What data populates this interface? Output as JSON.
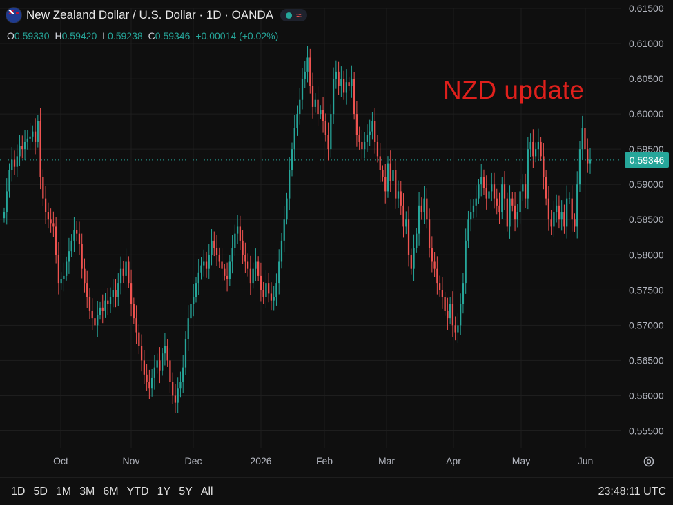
{
  "header": {
    "title": "New Zealand Dollar / U.S. Dollar · 1D · OANDA",
    "flag_icon": "nz-us-flag-icon",
    "status_icons": [
      "market-open-dot-icon",
      "wave-icon"
    ],
    "wave_glyph": "≈"
  },
  "ohlc": {
    "o_label": "O",
    "o_value": "0.59330",
    "h_label": "H",
    "h_value": "0.59420",
    "l_label": "L",
    "l_value": "0.59238",
    "c_label": "C",
    "c_value": "0.59346",
    "change": "+0.00014 (+0.02%)"
  },
  "annotation": "NZD update",
  "price_tag": "0.59346",
  "range_buttons": [
    "1D",
    "5D",
    "1M",
    "3M",
    "6M",
    "YTD",
    "1Y",
    "5Y",
    "All"
  ],
  "clock": "23:48:11 UTC",
  "colors": {
    "up": "#26a69a",
    "down": "#ef5350",
    "background": "#0f0f0f",
    "grid": "#1e1e1e",
    "annotation": "#e0201c"
  },
  "chart_data": {
    "type": "candlestick",
    "y_axis_position": "right",
    "ylim": [
      0.5525,
      0.615
    ],
    "y_ticks": [
      "0.61500",
      "0.61000",
      "0.60500",
      "0.60000",
      "0.59500",
      "0.59000",
      "0.58500",
      "0.58000",
      "0.57500",
      "0.57000",
      "0.56500",
      "0.56000",
      "0.55500"
    ],
    "x_ticks": [
      "Oct",
      "Nov",
      "Dec",
      "2026",
      "Feb",
      "Mar",
      "Apr",
      "May",
      "Jun"
    ],
    "last_close": 0.59346,
    "grid": true,
    "closes": [
      0.586,
      0.589,
      0.592,
      0.5935,
      0.5925,
      0.594,
      0.5955,
      0.595,
      0.596,
      0.5965,
      0.5968,
      0.5975,
      0.596,
      0.599,
      0.591,
      0.588,
      0.586,
      0.585,
      0.5845,
      0.584,
      0.58,
      0.576,
      0.5765,
      0.577,
      0.579,
      0.5805,
      0.582,
      0.5835,
      0.583,
      0.5815,
      0.578,
      0.576,
      0.574,
      0.572,
      0.571,
      0.57,
      0.5715,
      0.5725,
      0.572,
      0.5735,
      0.573,
      0.574,
      0.575,
      0.574,
      0.576,
      0.578,
      0.577,
      0.579,
      0.576,
      0.573,
      0.571,
      0.569,
      0.567,
      0.565,
      0.563,
      0.562,
      0.561,
      0.5625,
      0.564,
      0.565,
      0.5635,
      0.566,
      0.567,
      0.565,
      0.562,
      0.56,
      0.559,
      0.561,
      0.562,
      0.564,
      0.568,
      0.571,
      0.573,
      0.574,
      0.576,
      0.5775,
      0.5785,
      0.579,
      0.578,
      0.58,
      0.582,
      0.581,
      0.58,
      0.579,
      0.578,
      0.577,
      0.5765,
      0.579,
      0.581,
      0.583,
      0.584,
      0.582,
      0.58,
      0.579,
      0.578,
      0.576,
      0.578,
      0.579,
      0.577,
      0.575,
      0.574,
      0.576,
      0.5745,
      0.5735,
      0.574,
      0.576,
      0.579,
      0.582,
      0.585,
      0.588,
      0.592,
      0.595,
      0.598,
      0.6,
      0.602,
      0.605,
      0.606,
      0.608,
      0.604,
      0.601,
      0.602,
      0.6,
      0.6005,
      0.599,
      0.597,
      0.595,
      0.6,
      0.605,
      0.606,
      0.604,
      0.605,
      0.603,
      0.6045,
      0.604,
      0.605,
      0.6,
      0.597,
      0.596,
      0.595,
      0.596,
      0.597,
      0.5975,
      0.599,
      0.596,
      0.594,
      0.592,
      0.591,
      0.589,
      0.593,
      0.5905,
      0.592,
      0.588,
      0.589,
      0.587,
      0.584,
      0.585,
      0.58,
      0.578,
      0.581,
      0.583,
      0.587,
      0.586,
      0.588,
      0.585,
      0.581,
      0.579,
      0.578,
      0.576,
      0.575,
      0.574,
      0.572,
      0.571,
      0.573,
      0.57,
      0.569,
      0.57,
      0.573,
      0.576,
      0.582,
      0.585,
      0.586,
      0.587,
      0.588,
      0.59,
      0.591,
      0.5895,
      0.588,
      0.589,
      0.59,
      0.588,
      0.587,
      0.586,
      0.59,
      0.588,
      0.584,
      0.588,
      0.587,
      0.585,
      0.586,
      0.589,
      0.59,
      0.588,
      0.595,
      0.596,
      0.594,
      0.595,
      0.596,
      0.594,
      0.591,
      0.588,
      0.585,
      0.584,
      0.586,
      0.587,
      0.585,
      0.586,
      0.584,
      0.588,
      0.588,
      0.585,
      0.584,
      0.59,
      0.595,
      0.598,
      0.595,
      0.593,
      0.5935
    ]
  }
}
